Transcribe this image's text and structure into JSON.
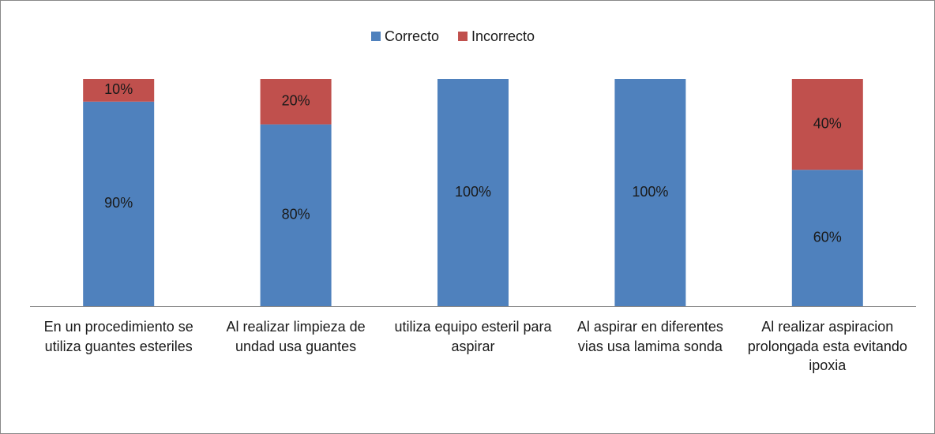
{
  "chart_data": {
    "type": "stacked_bar",
    "categories": [
      "En un procedimiento se utiliza guantes esteriles",
      "Al realizar limpieza de undad usa guantes",
      "utiliza equipo esteril para aspirar",
      "Al aspirar en diferentes vias usa lamima sonda",
      "Al realizar aspiracion prolongada esta evitando ipoxia"
    ],
    "series": [
      {
        "name": "Correcto",
        "color": "#4f81bd",
        "values": [
          90,
          80,
          100,
          100,
          60
        ],
        "value_labels": [
          "90%",
          "80%",
          "100%",
          "100%",
          "60%"
        ]
      },
      {
        "name": "Incorrecto",
        "color": "#c0504d",
        "values": [
          10,
          20,
          0,
          0,
          40
        ],
        "value_labels": [
          "10%",
          "20%",
          null,
          null,
          "40%"
        ]
      }
    ],
    "legend": "top"
  }
}
